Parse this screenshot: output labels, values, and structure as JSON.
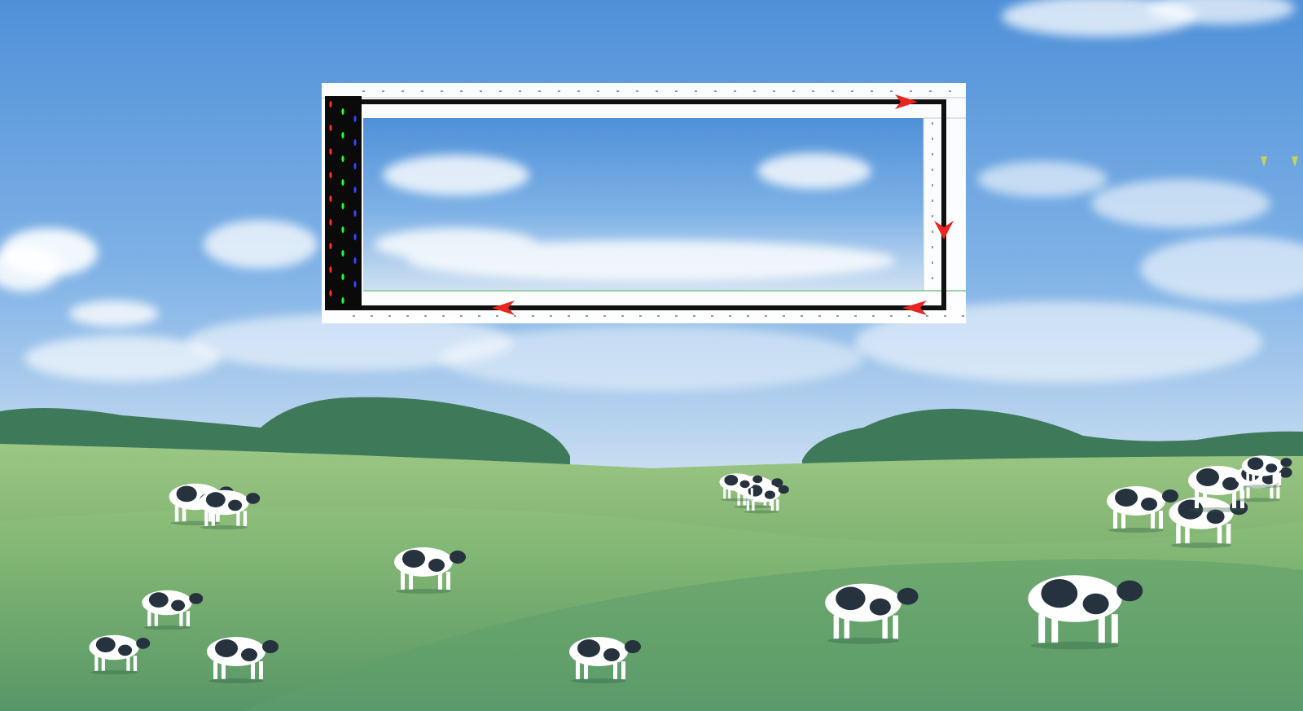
{
  "scene": {
    "colors": {
      "sky_top": "#4f90d8",
      "sky_mid": "#7fb2e6",
      "sky_horizon": "#cfe1f2",
      "grass_light": "#8cbe7a",
      "grass_mid": "#6ea86a",
      "grass_dark": "#4d8d64",
      "trees": "#3e7a5a",
      "cow_body": "#ffffff",
      "cow_patch": "#26323e"
    },
    "cows_count": 17
  },
  "track": {
    "colors": {
      "frame": "#ffffff",
      "path": "#111111",
      "arrow": "#e8251e",
      "led_bg": "#0a0a0a",
      "led_red": "#ff2a2a",
      "led_green": "#22ff33",
      "led_blue": "#3344ff",
      "guide_line": "#7fc98a"
    },
    "direction_arrows": [
      {
        "name": "arrow-right",
        "direction": "right"
      },
      {
        "name": "arrow-down",
        "direction": "down"
      },
      {
        "name": "arrow-left-near",
        "direction": "left"
      },
      {
        "name": "arrow-left-far",
        "direction": "left"
      }
    ]
  }
}
